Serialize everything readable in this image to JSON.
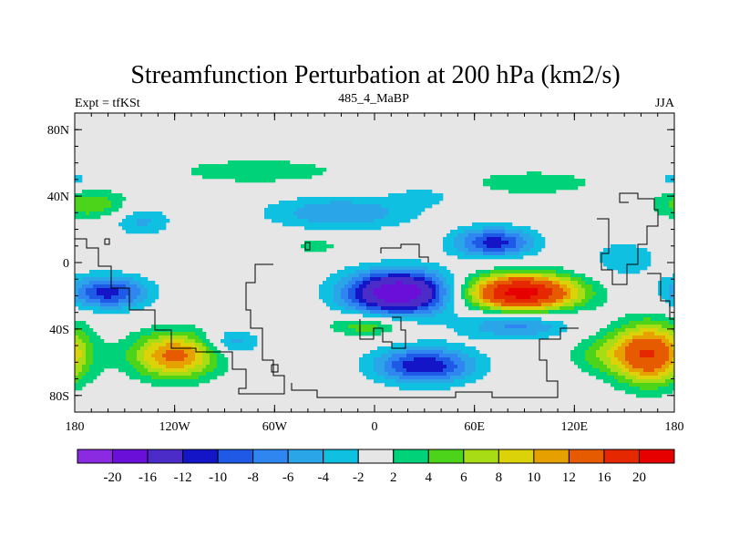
{
  "chart_data": {
    "type": "contour-map",
    "title": "Streamfunction Perturbation at 200 hPa (km2/s)",
    "subtitle_left": "Expt = tfKSt",
    "subtitle_center": "485_4_MaBP",
    "subtitle_right": "JJA",
    "xlim": [
      0,
      360
    ],
    "ylim": [
      -90,
      90
    ],
    "x_ticks": [
      {
        "label": "180",
        "value": 0
      },
      {
        "label": "120W",
        "value": 60
      },
      {
        "label": "60W",
        "value": 120
      },
      {
        "label": "0",
        "value": 180
      },
      {
        "label": "60E",
        "value": 240
      },
      {
        "label": "120E",
        "value": 300
      },
      {
        "label": "180",
        "value": 360
      }
    ],
    "y_ticks": [
      {
        "label": "80N",
        "value": 80
      },
      {
        "label": "40N",
        "value": 40
      },
      {
        "label": "0",
        "value": 0
      },
      {
        "label": "40S",
        "value": -40
      },
      {
        "label": "80S",
        "value": -80
      }
    ],
    "colorbar": {
      "colors": [
        "#8a2be2",
        "#6a0fd8",
        "#4b2cc8",
        "#1515c8",
        "#1e5ae6",
        "#2f86f0",
        "#2aa6e8",
        "#10c0e0",
        "#e6e6e6",
        "#00d27a",
        "#4cd41a",
        "#a8dc14",
        "#dcd20a",
        "#e6a000",
        "#e65a00",
        "#e62800",
        "#e60000"
      ],
      "labels": [
        "-20",
        "-16",
        "-12",
        "-10",
        "-8",
        "-6",
        "-4",
        "-2",
        "2",
        "4",
        "6",
        "8",
        "10",
        "12",
        "16",
        "20"
      ]
    },
    "background_color": "#e6e6e6",
    "anomalies": [
      {
        "lon": 195,
        "lat": -18,
        "amp": -20,
        "rx": 32,
        "ry": 13
      },
      {
        "lon": 20,
        "lat": -18,
        "amp": -11,
        "rx": 24,
        "ry": 10
      },
      {
        "lon": 40,
        "lat": 25,
        "amp": -4.5,
        "rx": 18,
        "ry": 9
      },
      {
        "lon": 160,
        "lat": 30,
        "amp": -6,
        "rx": 45,
        "ry": 10
      },
      {
        "lon": 252,
        "lat": 12,
        "amp": -11,
        "rx": 24,
        "ry": 9
      },
      {
        "lon": 210,
        "lat": -62,
        "amp": -12,
        "rx": 30,
        "ry": 11
      },
      {
        "lon": 265,
        "lat": -38,
        "amp": -7,
        "rx": 32,
        "ry": 8
      },
      {
        "lon": 95,
        "lat": -48,
        "amp": -5.5,
        "rx": 16,
        "ry": 8
      },
      {
        "lon": 330,
        "lat": 2,
        "amp": -3.5,
        "rx": 22,
        "ry": 12
      },
      {
        "lon": 268,
        "lat": -18,
        "amp": 22,
        "rx": 34,
        "ry": 11
      },
      {
        "lon": 60,
        "lat": -56,
        "amp": 13,
        "rx": 26,
        "ry": 14
      },
      {
        "lon": 175,
        "lat": -38,
        "amp": 6,
        "rx": 22,
        "ry": 6
      },
      {
        "lon": 275,
        "lat": 48,
        "amp": 4,
        "rx": 38,
        "ry": 7
      },
      {
        "lon": 110,
        "lat": 55,
        "amp": 3.5,
        "rx": 55,
        "ry": 8
      },
      {
        "lon": 10,
        "lat": 35,
        "amp": 6,
        "rx": 22,
        "ry": 9
      },
      {
        "lon": 145,
        "lat": 10,
        "amp": 3.5,
        "rx": 14,
        "ry": 4
      },
      {
        "lon": 345,
        "lat": -55,
        "amp": 16,
        "rx": 22,
        "ry": 18
      },
      {
        "lon": 315,
        "lat": -55,
        "amp": 4,
        "rx": 20,
        "ry": 12
      },
      {
        "lon": 0,
        "lat": 50,
        "amp": -3,
        "rx": 12,
        "ry": 6
      },
      {
        "lon": 210,
        "lat": 40,
        "amp": -2.5,
        "rx": 20,
        "ry": 6
      }
    ]
  }
}
